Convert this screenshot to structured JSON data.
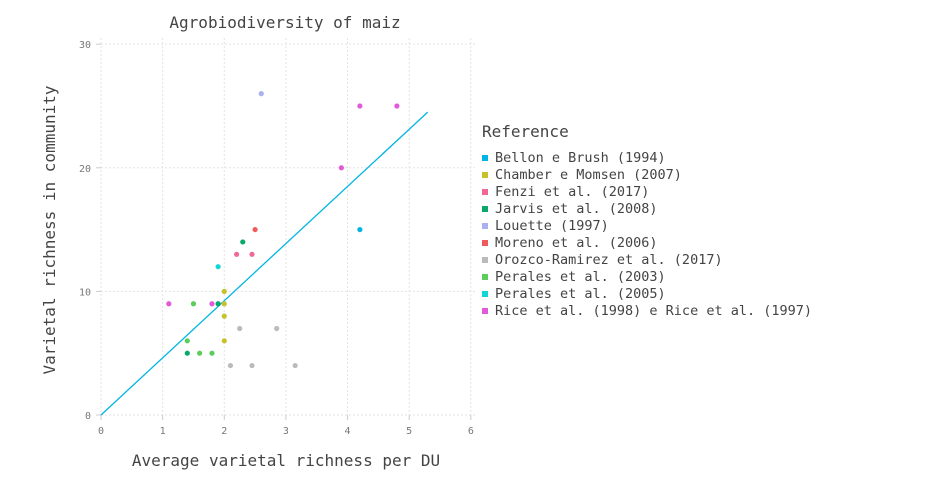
{
  "chart_data": {
    "type": "scatter",
    "title": "Agrobiodiversity of maiz",
    "xlabel": "Average varietal richness per DU",
    "ylabel": "Varietal richness in community",
    "xlim": [
      0,
      6.1
    ],
    "ylim": [
      0,
      30.5
    ],
    "xticks": [
      0,
      1,
      2,
      3,
      4,
      5,
      6
    ],
    "yticks": [
      0,
      10,
      20,
      30
    ],
    "grid": true,
    "legend_title": "Reference",
    "legend_position": "right",
    "series": [
      {
        "name": "Bellon e Brush (1994)",
        "color": "#00b5e2",
        "points": [
          [
            4.2,
            15
          ]
        ]
      },
      {
        "name": "Chamber e Momsen (2007)",
        "color": "#c7c12a",
        "points": [
          [
            2.0,
            10
          ],
          [
            2.0,
            9
          ],
          [
            2.0,
            8
          ],
          [
            2.0,
            6
          ]
        ]
      },
      {
        "name": "Fenzi et al. (2017)",
        "color": "#f0679a",
        "points": [
          [
            2.2,
            13
          ],
          [
            2.45,
            13
          ]
        ]
      },
      {
        "name": "Jarvis et al. (2008)",
        "color": "#0aa86a",
        "points": [
          [
            2.3,
            14
          ],
          [
            1.9,
            9
          ],
          [
            1.4,
            5
          ]
        ]
      },
      {
        "name": "Louette (1997)",
        "color": "#aab0f0",
        "points": [
          [
            2.6,
            26
          ]
        ]
      },
      {
        "name": "Moreno et al. (2006)",
        "color": "#ef5a5a",
        "points": [
          [
            2.5,
            15
          ]
        ]
      },
      {
        "name": "Orozco-Ramirez et al. (2017)",
        "color": "#bbbbbb",
        "points": [
          [
            2.25,
            7
          ],
          [
            2.85,
            7
          ],
          [
            2.1,
            4
          ],
          [
            2.45,
            4
          ],
          [
            3.15,
            4
          ]
        ]
      },
      {
        "name": "Perales et al. (2003)",
        "color": "#5ccc5c",
        "points": [
          [
            1.5,
            9
          ],
          [
            1.4,
            6
          ],
          [
            1.6,
            5
          ],
          [
            1.8,
            5
          ]
        ]
      },
      {
        "name": "Perales et al. (2005)",
        "color": "#12d6d6",
        "points": [
          [
            1.9,
            12
          ]
        ]
      },
      {
        "name": "Rice et al. (1998) e Rice et al. (1997)",
        "color": "#e15ad8",
        "points": [
          [
            1.1,
            9
          ],
          [
            1.8,
            9
          ],
          [
            3.9,
            20
          ],
          [
            4.2,
            25
          ],
          [
            4.8,
            25
          ]
        ]
      }
    ],
    "trendline": {
      "color": "#00b5e2",
      "points": [
        [
          0,
          0
        ],
        [
          5.3,
          24.5
        ]
      ]
    }
  }
}
